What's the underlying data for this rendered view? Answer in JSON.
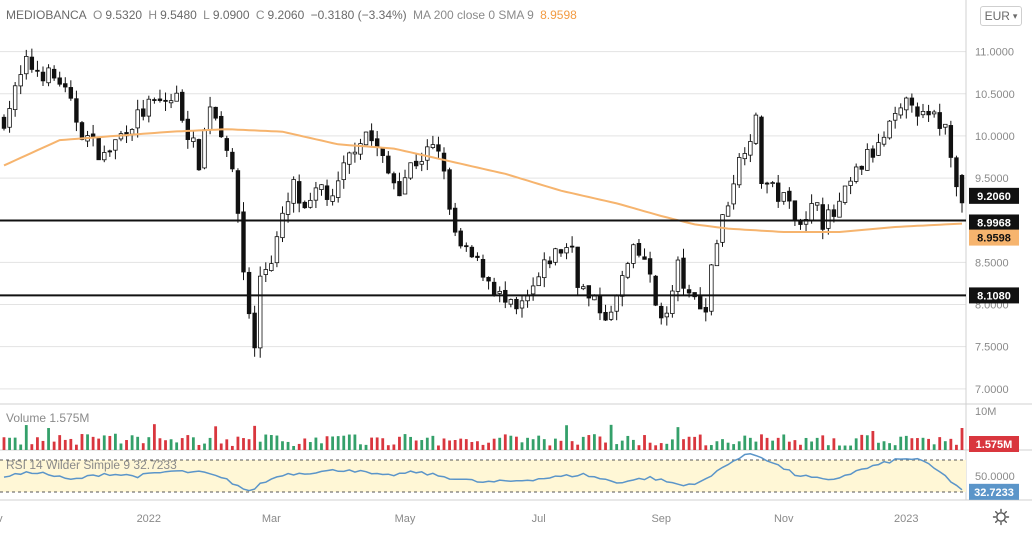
{
  "colors": {
    "candle": "#111111",
    "ma": "#f6b46e",
    "hline": "#111111",
    "vol_up": "#34a06a",
    "vol_down": "#d9363e",
    "rsi": "#5b95c9",
    "rsi_band": "#fff7d6",
    "grid": "#e3e3e3",
    "axis_text": "#8a8a8a"
  },
  "header": {
    "symbol": "MEDIOBANCA",
    "o_label": "O",
    "o": "9.5320",
    "h_label": "H",
    "h": "9.5480",
    "l_label": "L",
    "l": "9.0900",
    "c_label": "C",
    "c": "9.2060",
    "change": "−0.3180 (−3.34%)",
    "ma_label": "MA 200 close 0 SMA 9",
    "ma_value": "8.9598"
  },
  "currency": {
    "label": "EUR",
    "icon": "chevron-down-icon"
  },
  "volume_pane": {
    "label": "Volume",
    "value": "1.575M",
    "axis_label": "10M",
    "badge": "1.575M"
  },
  "rsi_pane": {
    "label": "RSI 14 Wilder Simple 9",
    "value": "32.7233",
    "axis_label": "50.0000",
    "badge": "32.7233"
  },
  "price_badges": {
    "last": "9.2060",
    "hline1": "8.9968",
    "ma": "8.9598",
    "hline2": "8.1080"
  },
  "chart_data": {
    "type": "candlestick",
    "x_ticks": [
      "Nov",
      "2022",
      "Mar",
      "May",
      "Jul",
      "Sep",
      "Nov",
      "2023",
      "Mar"
    ],
    "y_ticks": [
      "11.0000",
      "10.5000",
      "10.0000",
      "9.5000",
      "9.0000",
      "8.5000",
      "8.0000",
      "7.5000",
      "7.0000"
    ],
    "ylim": [
      6.82,
      11.28
    ],
    "horizontal_lines": [
      8.9968,
      8.108
    ],
    "rsi_band": [
      30,
      70
    ],
    "price_path": [
      [
        0,
        10.2
      ],
      [
        4,
        10.85
      ],
      [
        10,
        10.65
      ],
      [
        14,
        10.05
      ],
      [
        18,
        9.75
      ],
      [
        22,
        10.1
      ],
      [
        26,
        10.35
      ],
      [
        31,
        10.45
      ],
      [
        33,
        10.05
      ],
      [
        35,
        9.7
      ],
      [
        37,
        10.4
      ],
      [
        40,
        9.9
      ],
      [
        42,
        9.1
      ],
      [
        43,
        8.4
      ],
      [
        45,
        7.45
      ],
      [
        46,
        8.35
      ],
      [
        48,
        8.55
      ],
      [
        50,
        9.0
      ],
      [
        52,
        9.4
      ],
      [
        54,
        9.05
      ],
      [
        57,
        9.4
      ],
      [
        59,
        9.2
      ],
      [
        61,
        9.6
      ],
      [
        63,
        9.9
      ],
      [
        65,
        10.05
      ],
      [
        67,
        9.85
      ],
      [
        69,
        9.55
      ],
      [
        71,
        9.4
      ],
      [
        73,
        9.65
      ],
      [
        75,
        9.75
      ],
      [
        77,
        9.85
      ],
      [
        79,
        9.65
      ],
      [
        80,
        9.05
      ],
      [
        82,
        8.65
      ],
      [
        84,
        8.55
      ],
      [
        86,
        8.4
      ],
      [
        88,
        8.2
      ],
      [
        90,
        8.0
      ],
      [
        92,
        7.9
      ],
      [
        94,
        8.05
      ],
      [
        96,
        8.3
      ],
      [
        98,
        8.55
      ],
      [
        100,
        8.65
      ],
      [
        102,
        8.7
      ],
      [
        103,
        8.3
      ],
      [
        105,
        8.05
      ],
      [
        107,
        7.95
      ],
      [
        109,
        7.85
      ],
      [
        111,
        8.3
      ],
      [
        113,
        8.6
      ],
      [
        115,
        8.55
      ],
      [
        117,
        8.0
      ],
      [
        119,
        7.85
      ],
      [
        121,
        8.45
      ],
      [
        123,
        8.05
      ],
      [
        125,
        8.05
      ],
      [
        126,
        7.9
      ],
      [
        127,
        8.5
      ],
      [
        129,
        9.0
      ],
      [
        131,
        9.5
      ],
      [
        133,
        9.9
      ],
      [
        135,
        10.15
      ],
      [
        136,
        9.5
      ],
      [
        138,
        9.35
      ],
      [
        140,
        9.25
      ],
      [
        142,
        9.1
      ],
      [
        144,
        8.95
      ],
      [
        146,
        9.3
      ],
      [
        147,
        9.0
      ],
      [
        149,
        9.05
      ],
      [
        151,
        9.3
      ],
      [
        153,
        9.55
      ],
      [
        155,
        9.75
      ],
      [
        157,
        9.85
      ],
      [
        159,
        10.1
      ],
      [
        161,
        10.25
      ],
      [
        163,
        10.45
      ],
      [
        165,
        10.2
      ],
      [
        167,
        10.2
      ],
      [
        169,
        10.1
      ],
      [
        170,
        9.85
      ],
      [
        171,
        9.5
      ],
      [
        172,
        9.2
      ]
    ],
    "ma_path": [
      [
        0,
        9.65
      ],
      [
        10,
        9.95
      ],
      [
        20,
        10.0
      ],
      [
        30,
        10.05
      ],
      [
        40,
        10.08
      ],
      [
        50,
        10.05
      ],
      [
        60,
        9.9
      ],
      [
        70,
        9.85
      ],
      [
        80,
        9.7
      ],
      [
        90,
        9.55
      ],
      [
        100,
        9.35
      ],
      [
        110,
        9.2
      ],
      [
        118,
        9.05
      ],
      [
        124,
        8.95
      ],
      [
        130,
        8.9
      ],
      [
        140,
        8.86
      ],
      [
        150,
        8.86
      ],
      [
        160,
        8.92
      ],
      [
        172,
        8.96
      ]
    ],
    "volume": {
      "max_label": "10M",
      "last": 1.575
    },
    "rsi_path": [
      [
        0,
        50
      ],
      [
        6,
        55
      ],
      [
        12,
        45
      ],
      [
        18,
        53
      ],
      [
        24,
        50
      ],
      [
        30,
        56
      ],
      [
        36,
        54
      ],
      [
        40,
        45
      ],
      [
        42,
        38
      ],
      [
        44,
        30
      ],
      [
        46,
        40
      ],
      [
        50,
        52
      ],
      [
        56,
        55
      ],
      [
        62,
        58
      ],
      [
        68,
        50
      ],
      [
        74,
        55
      ],
      [
        80,
        48
      ],
      [
        86,
        42
      ],
      [
        92,
        44
      ],
      [
        98,
        48
      ],
      [
        104,
        52
      ],
      [
        110,
        42
      ],
      [
        116,
        48
      ],
      [
        122,
        38
      ],
      [
        126,
        45
      ],
      [
        130,
        66
      ],
      [
        134,
        78
      ],
      [
        136,
        74
      ],
      [
        142,
        52
      ],
      [
        148,
        44
      ],
      [
        154,
        58
      ],
      [
        160,
        70
      ],
      [
        164,
        72
      ],
      [
        168,
        55
      ],
      [
        171,
        38
      ],
      [
        172,
        32.72
      ]
    ]
  }
}
